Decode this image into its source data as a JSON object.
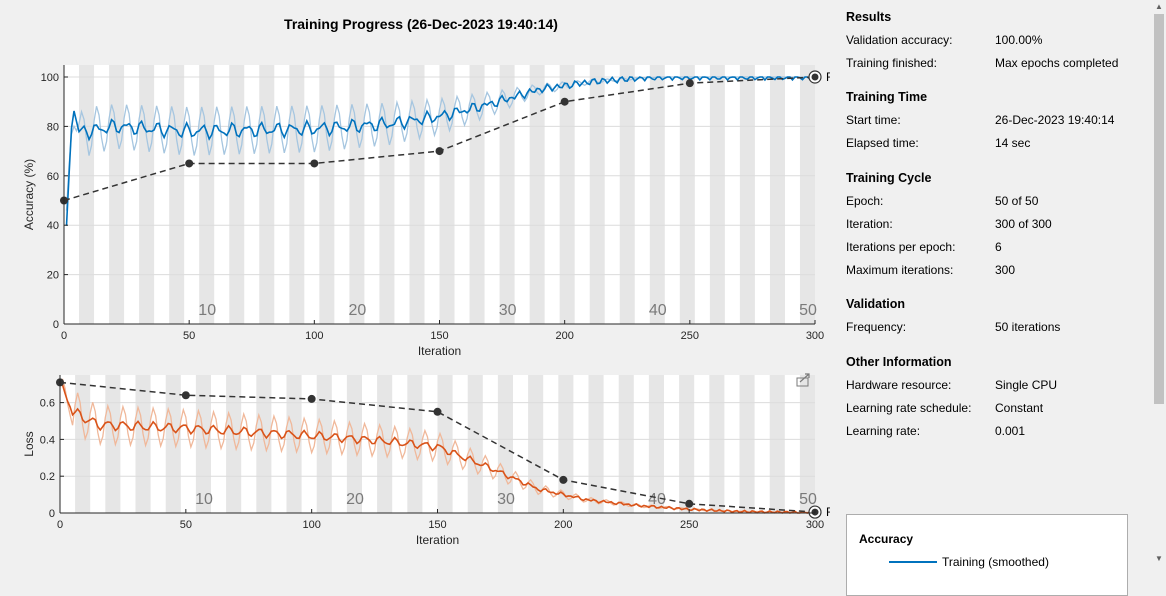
{
  "title": "Training Progress (26-Dec-2023 19:40:14)",
  "panel": {
    "sections": [
      {
        "title": "Results",
        "rows": [
          {
            "label": "Validation accuracy:",
            "value": "100.00%"
          },
          {
            "label": "Training finished:",
            "value": "Max epochs completed"
          }
        ]
      },
      {
        "title": "Training Time",
        "rows": [
          {
            "label": "Start time:",
            "value": "26-Dec-2023 19:40:14"
          },
          {
            "label": "Elapsed time:",
            "value": "14 sec"
          }
        ]
      },
      {
        "title": "Training Cycle",
        "rows": [
          {
            "label": "Epoch:",
            "value": "50 of 50"
          },
          {
            "label": "Iteration:",
            "value": "300 of 300"
          },
          {
            "label": "Iterations per epoch:",
            "value": "6"
          },
          {
            "label": "Maximum iterations:",
            "value": "300"
          }
        ]
      },
      {
        "title": "Validation",
        "rows": [
          {
            "label": "Frequency:",
            "value": "50 iterations"
          }
        ]
      },
      {
        "title": "Other Information",
        "rows": [
          {
            "label": "Hardware resource:",
            "value": "Single CPU"
          },
          {
            "label": "Learning rate schedule:",
            "value": "Constant"
          },
          {
            "label": "Learning rate:",
            "value": "0.001"
          }
        ]
      }
    ],
    "legend": {
      "title": "Accuracy",
      "entries": [
        {
          "label": "Training (smoothed)",
          "color": "#0072bd"
        }
      ]
    }
  },
  "colors": {
    "accuracy": "#0072bd",
    "accuracy_raw": "#a6c6e0",
    "loss": "#d95319",
    "loss_raw": "#f0b89a",
    "validation": "#333333"
  },
  "icons": {
    "export": "export-icon",
    "scroll_up": "arrow-up-icon",
    "scroll_down": "arrow-down-icon"
  },
  "chart_data": [
    {
      "type": "line",
      "xlabel": "Iteration",
      "ylabel": "Accuracy (%)",
      "xlim": [
        0,
        300
      ],
      "ylim": [
        0,
        100
      ],
      "xticks": [
        0,
        50,
        100,
        150,
        200,
        250,
        300
      ],
      "yticks": [
        0,
        20,
        40,
        60,
        80,
        100
      ],
      "epoch_labels": [
        10,
        20,
        30,
        40,
        50
      ],
      "epochs": 50,
      "iterations_per_epoch": 6,
      "final_label": "Final",
      "smoothed_anchors": [
        [
          1,
          38
        ],
        [
          3,
          80
        ],
        [
          4,
          88
        ],
        [
          6,
          78
        ],
        [
          10,
          78
        ],
        [
          20,
          80
        ],
        [
          50,
          78
        ],
        [
          100,
          79
        ],
        [
          130,
          81
        ],
        [
          150,
          84
        ],
        [
          170,
          89
        ],
        [
          190,
          95
        ],
        [
          210,
          98
        ],
        [
          230,
          99.6
        ],
        [
          240,
          100
        ],
        [
          300,
          100
        ]
      ],
      "validation": {
        "x": [
          0,
          50,
          100,
          150,
          200,
          250,
          300
        ],
        "y": [
          50,
          65,
          65,
          70,
          90,
          97.5,
          100
        ]
      }
    },
    {
      "type": "line",
      "xlabel": "Iteration",
      "ylabel": "Loss",
      "xlim": [
        0,
        300
      ],
      "ylim": [
        0,
        0.75
      ],
      "xticks": [
        0,
        50,
        100,
        150,
        200,
        250,
        300
      ],
      "yticks": [
        0,
        0.2,
        0.4,
        0.6
      ],
      "epoch_labels": [
        10,
        20,
        30,
        40,
        50
      ],
      "final_label": "Final",
      "smoothed_anchors": [
        [
          1,
          0.68
        ],
        [
          5,
          0.55
        ],
        [
          15,
          0.48
        ],
        [
          50,
          0.46
        ],
        [
          100,
          0.42
        ],
        [
          130,
          0.39
        ],
        [
          150,
          0.36
        ],
        [
          170,
          0.25
        ],
        [
          190,
          0.13
        ],
        [
          210,
          0.07
        ],
        [
          230,
          0.04
        ],
        [
          250,
          0.02
        ],
        [
          270,
          0.008
        ],
        [
          300,
          0.002
        ]
      ],
      "validation": {
        "x": [
          0,
          50,
          100,
          150,
          200,
          250,
          300
        ],
        "y": [
          0.71,
          0.64,
          0.62,
          0.55,
          0.18,
          0.05,
          0.005
        ]
      }
    }
  ]
}
